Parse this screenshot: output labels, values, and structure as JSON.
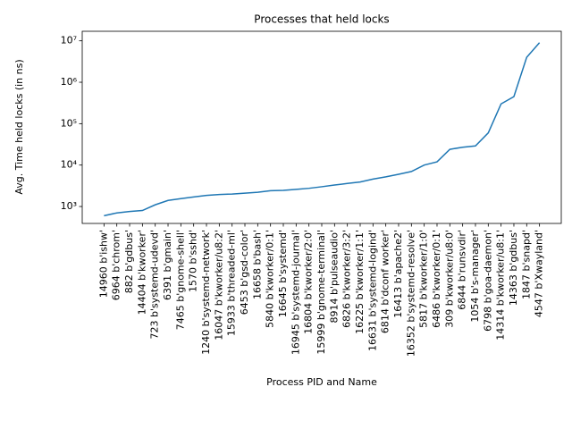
{
  "chart_data": {
    "type": "line",
    "title": "Processes that held locks",
    "xlabel": "Process PID and Name",
    "ylabel": "Avg. Time held locks (in ns)",
    "yscale": "log",
    "color": "#1f77b4",
    "categories": [
      "14960 b'ishw'",
      "6964 b'chrom'",
      "882 b'gdbus'",
      "14404 b'kworker'",
      "723 b'systemd-udevd'",
      "6391 b'gmain'",
      "7465 b'gnome-shell'",
      "1570 b'sshd'",
      "1240 b'systemd-network'",
      "16047 b'kworker/u8:2'",
      "15933 b'threaded-ml'",
      "6453 b'gsd-color'",
      "16658 b'bash'",
      "5840 b'kworker/0:1'",
      "16645 b'systemd'",
      "16945 b'systemd-journal'",
      "16804 b'kworker/2:0'",
      "15999 b'gnome-terminal'",
      "8914 b'pulseaudio'",
      "6826 b'kworker/3:2'",
      "16225 b'kworker/1:1'",
      "16631 b'systemd-logind'",
      "6814 b'dconf worker'",
      "16413 b'apache2'",
      "16352 b'systemd-resolve'",
      "5817 b'kworker/1:0'",
      "6486 b'kworker/0:1'",
      "309 b'kworker/u8:0'",
      "6844 b'runsvdir'",
      "1054 b's-manager'",
      "6798 b'goa-daemon'",
      "14314 b'kworker/u8:1'",
      "14363 b'gdbus'",
      "1847 b'snapd'",
      "4547 b'Xwayland'"
    ],
    "values": [
      600,
      700,
      760,
      800,
      1100,
      1400,
      1550,
      1700,
      1850,
      1950,
      2000,
      2100,
      2200,
      2400,
      2450,
      2600,
      2750,
      3000,
      3300,
      3600,
      3900,
      4600,
      5200,
      6000,
      7000,
      10000,
      12000,
      24000,
      27000,
      29000,
      60000,
      300000,
      450000,
      4000000,
      9000000
    ],
    "ylim": [
      390,
      17000000
    ],
    "yticks": [
      {
        "value": 1000,
        "label": "10³"
      },
      {
        "value": 10000,
        "label": "10⁴"
      },
      {
        "value": 100000,
        "label": "10⁵"
      },
      {
        "value": 1000000,
        "label": "10⁶"
      },
      {
        "value": 10000000,
        "label": "10⁷"
      }
    ]
  }
}
